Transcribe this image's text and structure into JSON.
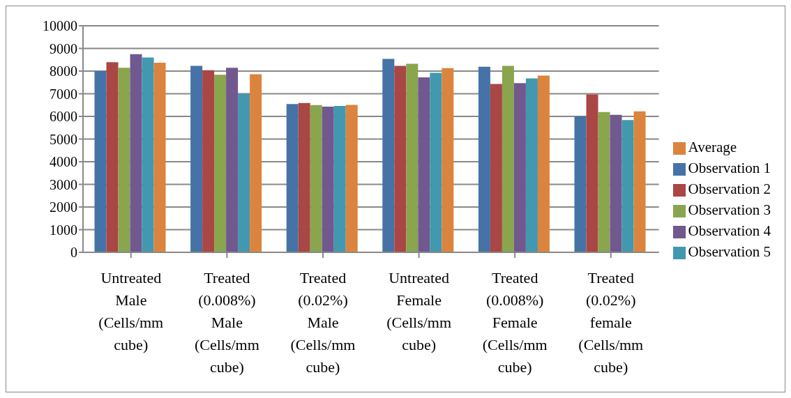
{
  "chart_data": {
    "type": "bar",
    "categories": [
      "Untreated Male (Cells/mm cube)",
      "Treated (0.008%) Male (Cells/mm cube)",
      "Treated (0.02%) Male (Cells/mm cube)",
      "Untreated Female (Cells/mm cube)",
      "Treated (0.008%) Female (Cells/mm cube)",
      "Treated (0.02%) female (Cells/mm cube)"
    ],
    "series": [
      {
        "name": "Observation 1",
        "color": "#4572a7",
        "values": [
          8000,
          8230,
          6550,
          8540,
          8190,
          6000
        ]
      },
      {
        "name": "Observation 2",
        "color": "#aa4643",
        "values": [
          8390,
          8040,
          6590,
          8230,
          7430,
          6970
        ]
      },
      {
        "name": "Observation 3",
        "color": "#89a54e",
        "values": [
          8150,
          7840,
          6500,
          8320,
          8230,
          6190
        ]
      },
      {
        "name": "Observation 4",
        "color": "#71588f",
        "values": [
          8750,
          8150,
          6430,
          7720,
          7470,
          6070
        ]
      },
      {
        "name": "Observation 5",
        "color": "#4198af",
        "values": [
          8600,
          7000,
          6460,
          7920,
          7680,
          5840
        ]
      },
      {
        "name": "Average",
        "color": "#db843d",
        "values": [
          8370,
          7860,
          6510,
          8130,
          7800,
          6220
        ]
      }
    ],
    "ylim": [
      0,
      10000
    ],
    "yticks": [
      0,
      1000,
      2000,
      3000,
      4000,
      5000,
      6000,
      7000,
      8000,
      9000,
      10000
    ],
    "grid": "y",
    "legend": "right"
  }
}
